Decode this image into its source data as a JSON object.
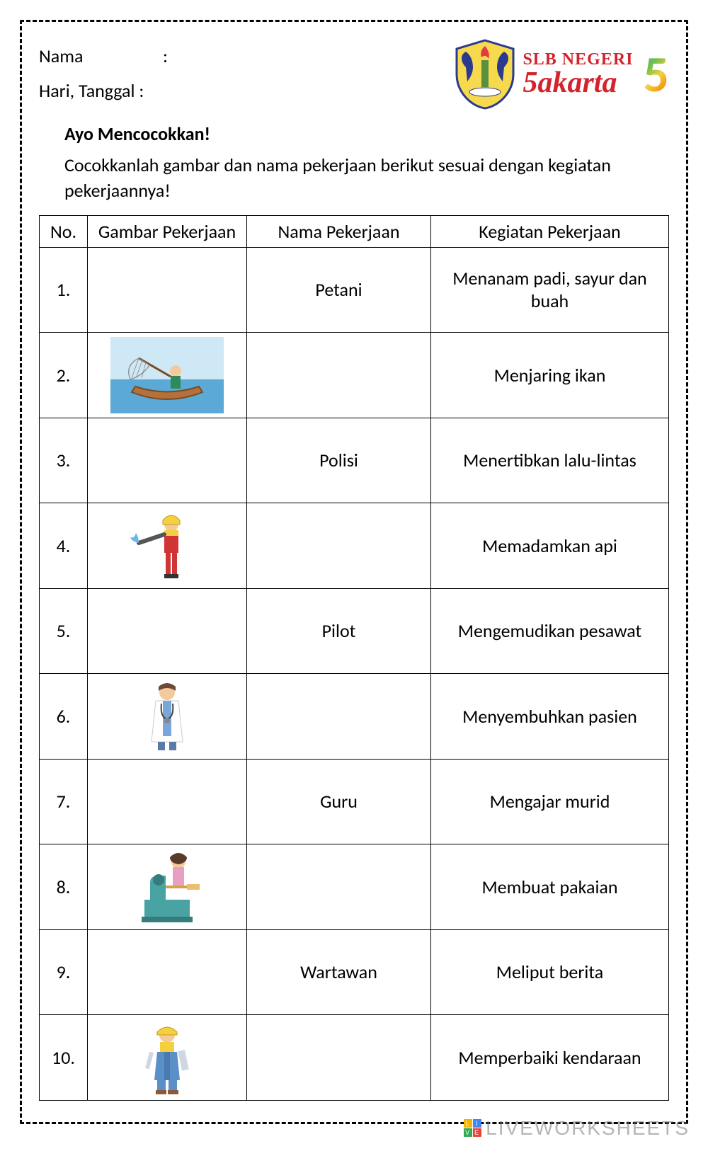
{
  "header": {
    "name_label": "Nama",
    "date_label": "Hari, Tanggal :",
    "colon": ":"
  },
  "logo": {
    "line1": "SLB NEGERI",
    "line2_a": "5",
    "line2_b": "akarta",
    "big5": "5",
    "shield_bg": "#f6d94c",
    "shield_border": "#2b3a8f",
    "wing_color": "#2b3a8f",
    "flame_color": "#e63946"
  },
  "section": {
    "title": "Ayo Mencocokkan!",
    "instruction": "Cocokkanlah gambar dan nama pekerjaan berikut sesuai dengan kegiatan pekerjaannya!"
  },
  "table": {
    "columns": [
      "No.",
      "Gambar Pekerjaan",
      "Nama Pekerjaan",
      "Kegiatan Pekerjaan"
    ],
    "rows": [
      {
        "no": "1.",
        "image": null,
        "name": "Petani",
        "activity": "Menanam padi, sayur dan buah"
      },
      {
        "no": "2.",
        "image": "fisherman",
        "name": "",
        "activity": "Menjaring ikan"
      },
      {
        "no": "3.",
        "image": null,
        "name": "Polisi",
        "activity": "Menertibkan lalu-lintas"
      },
      {
        "no": "4.",
        "image": "firefighter",
        "name": "",
        "activity": "Memadamkan api"
      },
      {
        "no": "5.",
        "image": null,
        "name": "Pilot",
        "activity": "Mengemudikan pesawat"
      },
      {
        "no": "6.",
        "image": "doctor",
        "name": "",
        "activity": "Menyembuhkan pasien"
      },
      {
        "no": "7.",
        "image": null,
        "name": "Guru",
        "activity": "Mengajar murid"
      },
      {
        "no": "8.",
        "image": "tailor",
        "name": "",
        "activity": "Membuat pakaian"
      },
      {
        "no": "9.",
        "image": null,
        "name": "Wartawan",
        "activity": "Meliput berita"
      },
      {
        "no": "10.",
        "image": "mechanic",
        "name": "",
        "activity": "Memperbaiki kendaraan"
      }
    ]
  },
  "watermark": {
    "text": "LIVEWORKSHEETS",
    "badge_colors": [
      "#f4b400",
      "#4285f4",
      "#34a853",
      "#ea4335"
    ],
    "badge_letters": [
      "L",
      "I",
      "V",
      "E"
    ]
  }
}
